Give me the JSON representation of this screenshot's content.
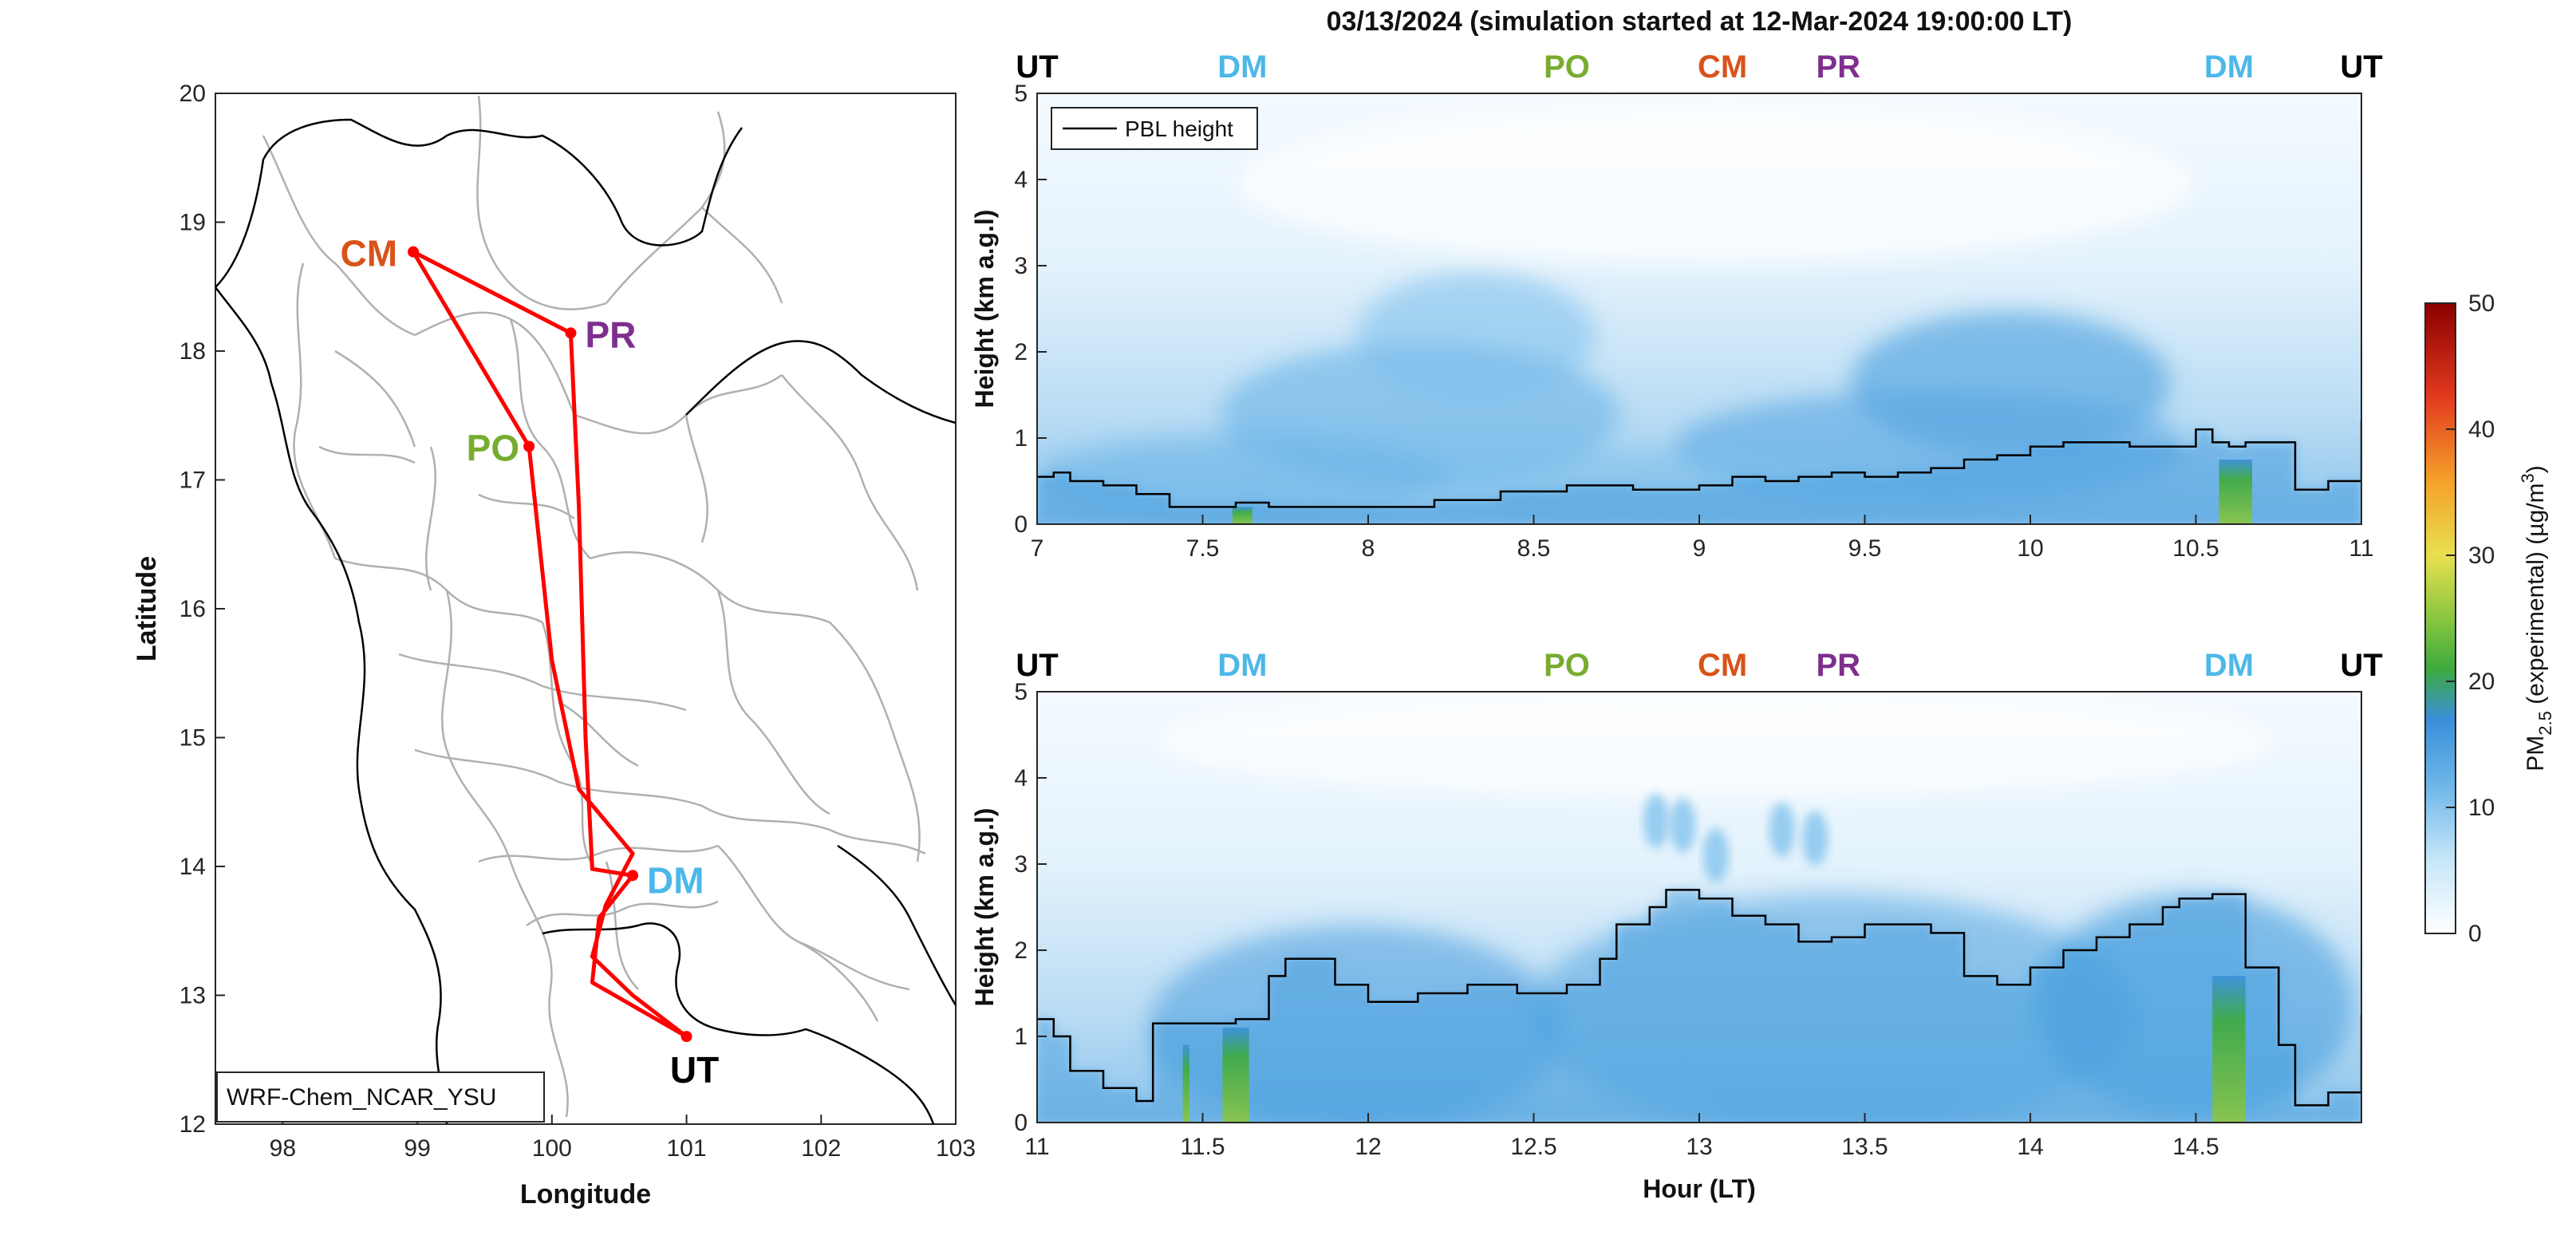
{
  "figure": {
    "title": "03/13/2024 (simulation started at 12-Mar-2024 19:00:00 LT)",
    "model_label": "WRF-Chem_NCAR_YSU"
  },
  "colors": {
    "UT": "#000000",
    "DM": "#4db8e8",
    "PO": "#77ac30",
    "CM": "#d95319",
    "PR": "#7e2f8e",
    "route": "#ff0000",
    "boundary": "#b0b0b0",
    "coast": "#000000"
  },
  "chart_data": [
    {
      "type": "map",
      "xlabel": "Longitude",
      "ylabel": "Latitude",
      "xlim": [
        97.5,
        103
      ],
      "ylim": [
        12,
        20
      ],
      "xticks": [
        98,
        99,
        100,
        101,
        102,
        103
      ],
      "yticks": [
        12,
        13,
        14,
        15,
        16,
        17,
        18,
        19,
        20
      ],
      "stations": [
        {
          "name": "CM",
          "lon": 98.97,
          "lat": 18.77
        },
        {
          "name": "PR",
          "lon": 100.14,
          "lat": 18.14
        },
        {
          "name": "PO",
          "lon": 99.83,
          "lat": 17.26
        },
        {
          "name": "DM",
          "lon": 100.6,
          "lat": 13.93
        },
        {
          "name": "UT",
          "lon": 101.0,
          "lat": 12.68
        }
      ],
      "route": [
        [
          101.0,
          12.68
        ],
        [
          100.6,
          13.0
        ],
        [
          100.3,
          13.3
        ],
        [
          100.4,
          13.7
        ],
        [
          100.6,
          14.1
        ],
        [
          100.2,
          14.6
        ],
        [
          100.0,
          15.6
        ],
        [
          99.83,
          17.26
        ],
        [
          98.97,
          18.77
        ],
        [
          100.14,
          18.14
        ],
        [
          100.2,
          16.8
        ],
        [
          100.25,
          15.0
        ],
        [
          100.3,
          13.98
        ],
        [
          100.6,
          13.93
        ],
        [
          100.35,
          13.6
        ],
        [
          100.3,
          13.1
        ],
        [
          101.0,
          12.68
        ]
      ]
    },
    {
      "type": "heatmap",
      "ylabel": "Height (km a.g.l)",
      "xlim": [
        7,
        11
      ],
      "ylim": [
        0,
        5
      ],
      "xticks": [
        7,
        7.5,
        8,
        8.5,
        9,
        9.5,
        10,
        10.5,
        11
      ],
      "yticks": [
        0,
        1,
        2,
        3,
        4,
        5
      ],
      "legend": "PBL height",
      "legend_position": "top-left",
      "top_labels": [
        {
          "text": "UT",
          "x": 7.0
        },
        {
          "text": "DM",
          "x": 7.62
        },
        {
          "text": "PO",
          "x": 8.6
        },
        {
          "text": "CM",
          "x": 9.07
        },
        {
          "text": "PR",
          "x": 9.42
        },
        {
          "text": "DM",
          "x": 10.6
        },
        {
          "text": "UT",
          "x": 11.0
        }
      ],
      "pbl_height": {
        "x": [
          7.0,
          7.05,
          7.1,
          7.2,
          7.3,
          7.4,
          7.5,
          7.6,
          7.7,
          8.0,
          8.2,
          8.4,
          8.6,
          8.8,
          9.0,
          9.1,
          9.2,
          9.3,
          9.4,
          9.5,
          9.6,
          9.7,
          9.8,
          9.9,
          10.0,
          10.1,
          10.2,
          10.3,
          10.45,
          10.5,
          10.55,
          10.6,
          10.65,
          10.7,
          10.75,
          10.8,
          10.9,
          10.95,
          11.0
        ],
        "y": [
          0.55,
          0.6,
          0.5,
          0.45,
          0.35,
          0.2,
          0.2,
          0.25,
          0.2,
          0.2,
          0.28,
          0.38,
          0.45,
          0.4,
          0.45,
          0.55,
          0.5,
          0.55,
          0.6,
          0.55,
          0.6,
          0.65,
          0.75,
          0.8,
          0.9,
          0.95,
          0.95,
          0.9,
          0.9,
          1.1,
          0.95,
          0.9,
          0.95,
          0.95,
          0.95,
          0.4,
          0.5,
          0.5,
          1.2
        ]
      },
      "pm_plumes": [
        {
          "x": 7.62,
          "width": 0.06,
          "height": 0.2,
          "value": 22
        },
        {
          "x": 10.62,
          "width": 0.1,
          "height": 0.75,
          "value": 22
        }
      ]
    },
    {
      "type": "heatmap",
      "xlabel": "Hour (LT)",
      "ylabel": "Height (km a.g.l)",
      "xlim": [
        11,
        15
      ],
      "ylim": [
        0,
        5
      ],
      "xticks": [
        11,
        11.5,
        12,
        12.5,
        13,
        13.5,
        14,
        14.5
      ],
      "yticks": [
        0,
        1,
        2,
        3,
        4,
        5
      ],
      "top_labels": [
        {
          "text": "UT",
          "x": 11.0
        },
        {
          "text": "DM",
          "x": 11.62
        },
        {
          "text": "PO",
          "x": 12.6
        },
        {
          "text": "CM",
          "x": 13.07
        },
        {
          "text": "PR",
          "x": 13.42
        },
        {
          "text": "DM",
          "x": 14.6
        },
        {
          "text": "UT",
          "x": 15.0
        }
      ],
      "pbl_height": {
        "x": [
          11.0,
          11.05,
          11.1,
          11.2,
          11.3,
          11.35,
          11.5,
          11.6,
          11.7,
          11.75,
          11.9,
          12.0,
          12.15,
          12.3,
          12.45,
          12.6,
          12.7,
          12.75,
          12.85,
          12.9,
          13.0,
          13.1,
          13.2,
          13.3,
          13.4,
          13.5,
          13.6,
          13.7,
          13.8,
          13.9,
          14.0,
          14.1,
          14.2,
          14.3,
          14.4,
          14.45,
          14.55,
          14.65,
          14.7,
          14.75,
          14.8,
          14.9,
          15.0
        ],
        "y": [
          1.2,
          1.0,
          0.6,
          0.4,
          0.25,
          1.15,
          1.15,
          1.2,
          1.7,
          1.9,
          1.6,
          1.4,
          1.5,
          1.6,
          1.5,
          1.6,
          1.9,
          2.3,
          2.5,
          2.7,
          2.6,
          2.4,
          2.3,
          2.1,
          2.15,
          2.3,
          2.3,
          2.2,
          1.7,
          1.6,
          1.8,
          2.0,
          2.15,
          2.3,
          2.5,
          2.6,
          2.65,
          1.8,
          1.8,
          0.9,
          0.2,
          0.35,
          1.25
        ]
      },
      "pm_plumes": [
        {
          "x": 11.45,
          "width": 0.02,
          "height": 0.9,
          "value": 20
        },
        {
          "x": 11.6,
          "width": 0.08,
          "height": 1.1,
          "value": 22
        },
        {
          "x": 14.6,
          "width": 0.1,
          "height": 1.7,
          "value": 22
        }
      ],
      "upper_patches": [
        {
          "x": 12.87,
          "y": 3.5
        },
        {
          "x": 12.95,
          "y": 3.45
        },
        {
          "x": 13.05,
          "y": 3.1
        },
        {
          "x": 13.25,
          "y": 3.4
        },
        {
          "x": 13.35,
          "y": 3.3
        }
      ]
    },
    {
      "type": "colorbar",
      "label": "PM",
      "label_sub": "2.5",
      "label_rest": " (experimental) (µg/m",
      "label_sup": "3",
      "label_end": ")",
      "range": [
        0,
        50
      ],
      "ticks": [
        0,
        10,
        20,
        30,
        40,
        50
      ],
      "colormap": [
        "#ffffff",
        "#a8daf5",
        "#3a8fd9",
        "#3daa3d",
        "#e8e050",
        "#f59f2a",
        "#e23a1e",
        "#8b0000"
      ]
    }
  ]
}
